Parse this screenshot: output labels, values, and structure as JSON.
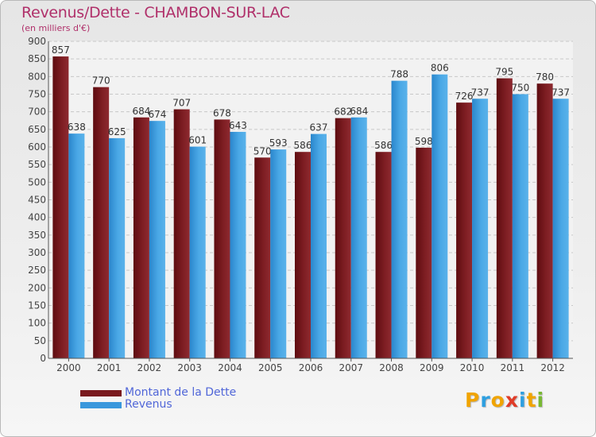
{
  "title": "Revenus/Dette - CHAMBON-SUR-LAC",
  "subtitle": "(en milliers d'€)",
  "logo": {
    "text": "Proxiti",
    "letter_colors": [
      "#f0a400",
      "#2e9fe0",
      "#f0a400",
      "#e03c28",
      "#2e9fe0",
      "#f0a400",
      "#78b832"
    ]
  },
  "colors": {
    "dette": "#7a1a1e",
    "revenus": "#3a98dc",
    "title": "#b0306a",
    "legend_text": "#5066d8"
  },
  "chart_data": {
    "type": "bar",
    "categories": [
      "2000",
      "2001",
      "2002",
      "2003",
      "2004",
      "2005",
      "2006",
      "2007",
      "2008",
      "2009",
      "2010",
      "2011",
      "2012"
    ],
    "series": [
      {
        "name": "Montant de la Dette",
        "values": [
          857,
          770,
          684,
          707,
          678,
          570,
          586,
          682,
          586,
          598,
          726,
          795,
          780
        ]
      },
      {
        "name": "Revenus",
        "values": [
          638,
          625,
          674,
          601,
          643,
          593,
          637,
          684,
          788,
          806,
          737,
          750,
          737
        ]
      }
    ],
    "ylim": [
      0,
      900
    ],
    "yticks": [
      0,
      50,
      100,
      150,
      200,
      250,
      300,
      350,
      400,
      450,
      500,
      550,
      600,
      650,
      700,
      750,
      800,
      850,
      900
    ],
    "grid": true,
    "legend_position": "bottom-left"
  }
}
